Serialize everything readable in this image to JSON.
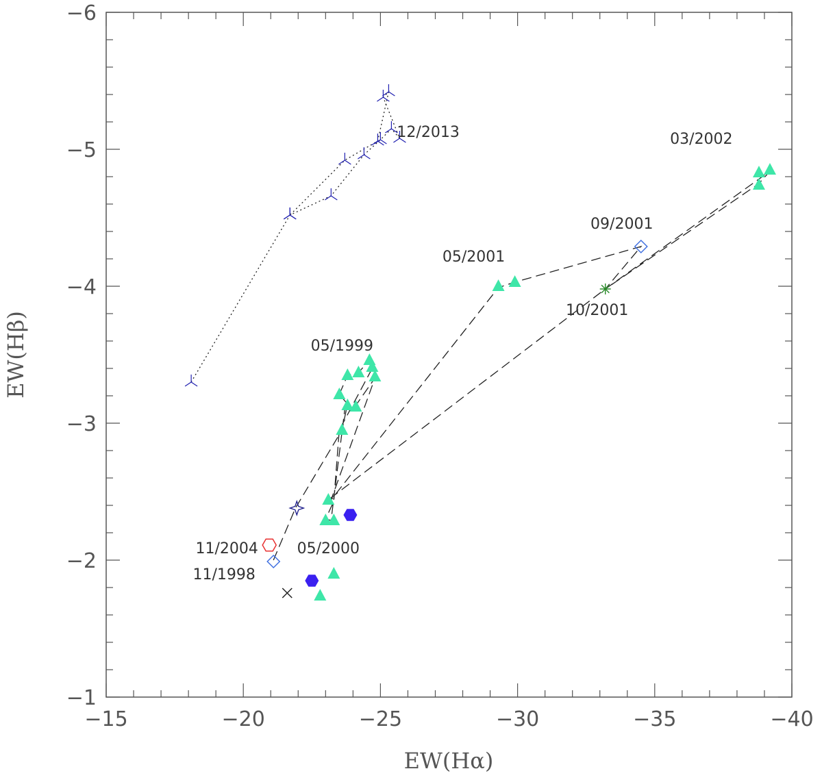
{
  "chart_data": {
    "type": "scatter",
    "title": "",
    "xlabel": "EW(Hα)",
    "ylabel": "EW(Hβ)",
    "xlim": [
      -15,
      -40
    ],
    "ylim": [
      -1,
      -6
    ],
    "x_major_ticks": [
      -15,
      -20,
      -25,
      -30,
      -35,
      -40
    ],
    "x_tick_labels": [
      "−15",
      "−20",
      "−25",
      "−30",
      "−35",
      "−40"
    ],
    "y_major_ticks": [
      -1,
      -2,
      -3,
      -4,
      -5,
      -6
    ],
    "y_tick_labels": [
      "−1",
      "−2",
      "−3",
      "−4",
      "−5",
      "−6"
    ],
    "minor_tick_step": 1,
    "y_minor_tick_step": 0.2,
    "grid": false,
    "colors": {
      "triangle": "#3ee6a8",
      "hexagon_filled": "#3a20f0",
      "hexagon_open": "#e83030",
      "diamond": "#4070e0",
      "tripod": "#2020b0",
      "star": "#1a1a8a",
      "cross": "#222222",
      "asterisk": "#2a8a2a",
      "path": "#222222",
      "axis": "#555555"
    },
    "series": [
      {
        "name": "dotted-track",
        "marker": "tripod",
        "line": "dotted",
        "points": [
          [
            -18.1,
            -3.3
          ],
          [
            -21.7,
            -4.52
          ],
          [
            -23.2,
            -4.66
          ],
          [
            -24.4,
            -4.96
          ],
          [
            -25.0,
            -5.07
          ],
          [
            -25.4,
            -5.15
          ],
          [
            -25.7,
            -5.08
          ],
          [
            -25.1,
            -5.38
          ],
          [
            -25.3,
            -5.42
          ],
          [
            -24.9,
            -5.06
          ],
          [
            -23.7,
            -4.92
          ],
          [
            -21.7,
            -4.52
          ]
        ]
      },
      {
        "name": "dashed-track",
        "marker": "none",
        "line": "dashed",
        "points": [
          [
            -21.1,
            -2.0
          ],
          [
            -21.9,
            -2.38
          ],
          [
            -23.6,
            -2.95
          ],
          [
            -23.8,
            -3.14
          ],
          [
            -23.5,
            -3.21
          ],
          [
            -23.8,
            -3.35
          ],
          [
            -24.2,
            -3.37
          ],
          [
            -24.6,
            -3.46
          ],
          [
            -24.7,
            -3.4
          ],
          [
            -23.5,
            -2.95
          ],
          [
            -23.3,
            -2.43
          ],
          [
            -23.0,
            -2.3
          ],
          [
            -23.2,
            -2.29
          ],
          [
            -23.7,
            -3.1
          ],
          [
            -24.1,
            -3.13
          ],
          [
            -24.8,
            -3.33
          ],
          [
            -23.2,
            -2.44
          ],
          [
            -29.3,
            -3.99
          ],
          [
            -29.9,
            -4.03
          ],
          [
            -34.5,
            -4.29
          ],
          [
            -33.2,
            -3.98
          ],
          [
            -38.8,
            -4.75
          ],
          [
            -39.2,
            -4.84
          ],
          [
            -33.2,
            -3.98
          ],
          [
            -23.1,
            -2.44
          ]
        ]
      },
      {
        "name": "triangles",
        "marker": "triangle",
        "points": [
          [
            -23.6,
            -2.95
          ],
          [
            -23.5,
            -3.21
          ],
          [
            -23.8,
            -3.35
          ],
          [
            -23.8,
            -3.13
          ],
          [
            -24.1,
            -3.12
          ],
          [
            -24.2,
            -3.37
          ],
          [
            -24.6,
            -3.46
          ],
          [
            -24.7,
            -3.41
          ],
          [
            -24.8,
            -3.34
          ],
          [
            -23.1,
            -2.44
          ],
          [
            -23.0,
            -2.29
          ],
          [
            -23.3,
            -2.29
          ],
          [
            -22.8,
            -1.74
          ],
          [
            -23.3,
            -1.9
          ],
          [
            -29.3,
            -4.0
          ],
          [
            -29.9,
            -4.03
          ],
          [
            -38.8,
            -4.83
          ],
          [
            -38.8,
            -4.74
          ],
          [
            -39.2,
            -4.85
          ]
        ]
      },
      {
        "name": "hexagons-filled",
        "marker": "hexagon",
        "points": [
          [
            -23.9,
            -2.33
          ],
          [
            -22.5,
            -1.85
          ]
        ]
      },
      {
        "name": "hexagon-open",
        "marker": "hexagon-open",
        "points": [
          [
            -20.95,
            -2.11
          ]
        ]
      },
      {
        "name": "diamonds",
        "marker": "diamond",
        "points": [
          [
            -21.1,
            -1.99
          ],
          [
            -34.5,
            -4.29
          ]
        ]
      },
      {
        "name": "star",
        "marker": "star",
        "points": [
          [
            -21.95,
            -2.38
          ]
        ]
      },
      {
        "name": "cross",
        "marker": "cross",
        "points": [
          [
            -21.6,
            -1.76
          ]
        ]
      },
      {
        "name": "asterisk",
        "marker": "asterisk",
        "points": [
          [
            -33.2,
            -3.98
          ]
        ]
      }
    ],
    "annotations": [
      {
        "text": "12/2013",
        "x": -25.6,
        "y": -5.09,
        "anchor": "start"
      },
      {
        "text": "03/2002",
        "x": -36.7,
        "y": -5.04,
        "anchor": "middle"
      },
      {
        "text": "09/2001",
        "x": -33.8,
        "y": -4.42,
        "anchor": "middle"
      },
      {
        "text": "05/2001",
        "x": -28.4,
        "y": -4.18,
        "anchor": "middle"
      },
      {
        "text": "10/2001",
        "x": -32.9,
        "y": -3.79,
        "anchor": "middle"
      },
      {
        "text": "05/1999",
        "x": -23.6,
        "y": -3.53,
        "anchor": "middle"
      },
      {
        "text": "11/2004",
        "x": -19.4,
        "y": -2.05,
        "anchor": "middle"
      },
      {
        "text": "05/2000",
        "x": -23.1,
        "y": -2.05,
        "anchor": "middle"
      },
      {
        "text": "11/1998",
        "x": -19.3,
        "y": -1.86,
        "anchor": "middle"
      }
    ]
  }
}
